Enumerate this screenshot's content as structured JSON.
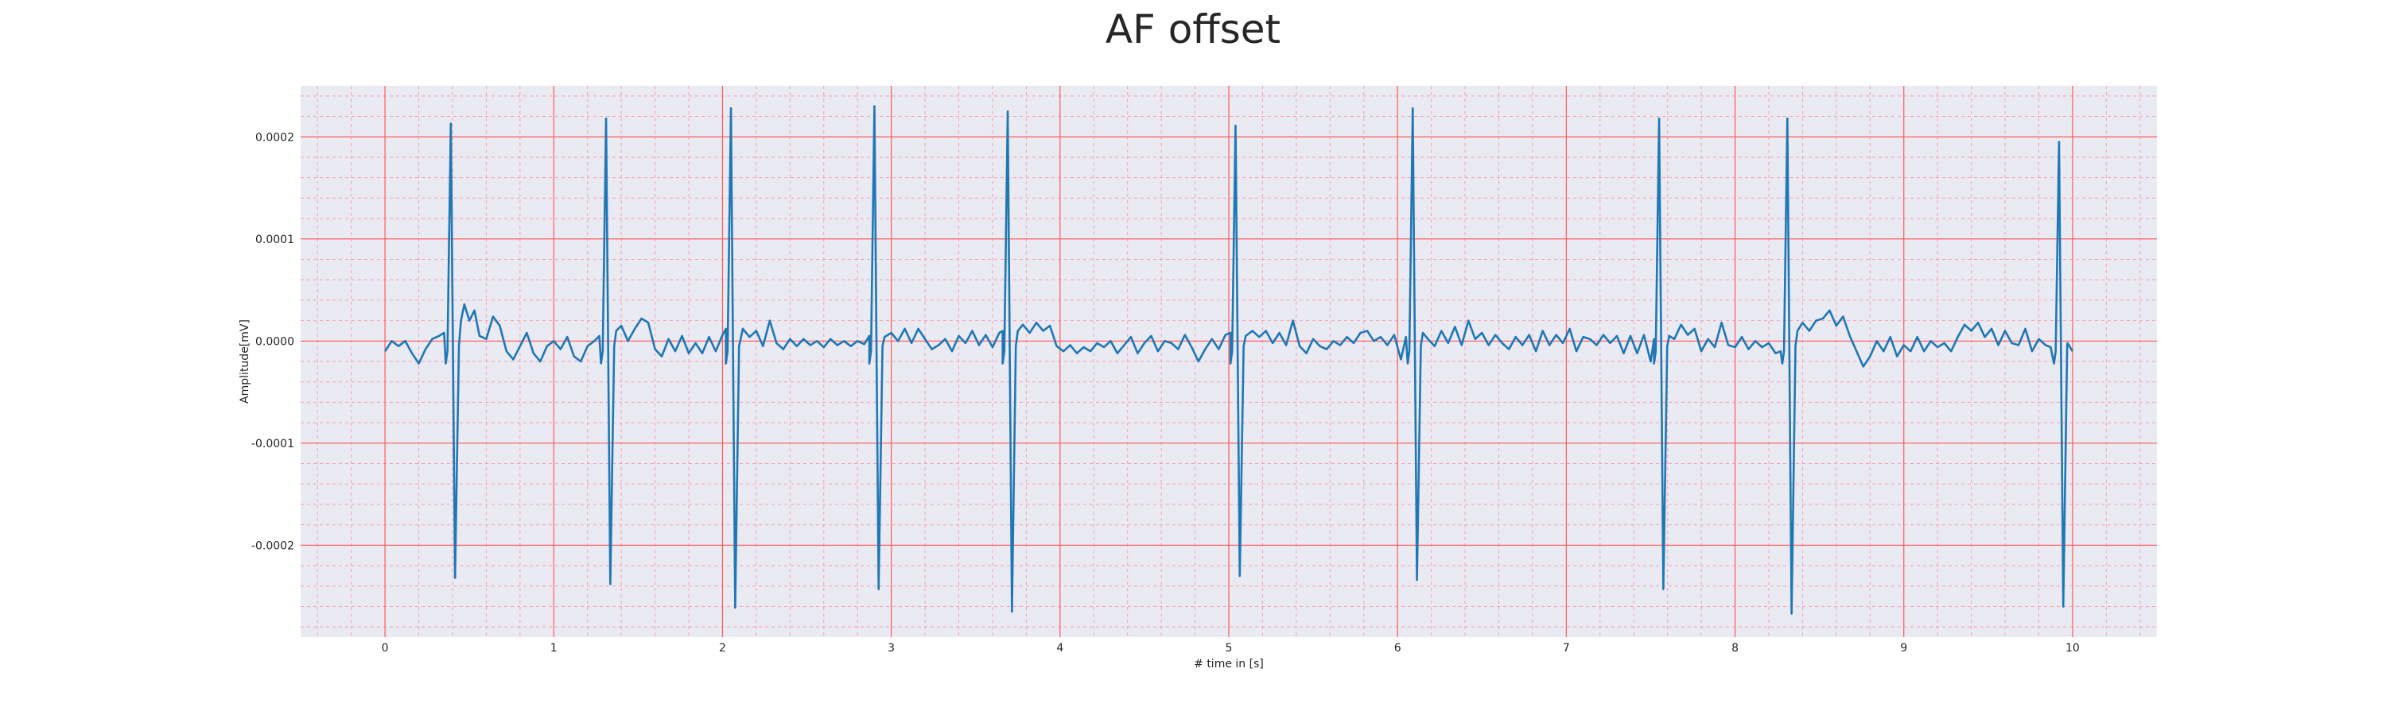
{
  "chart_data": {
    "type": "line",
    "title": "AF offset",
    "xlabel": "# time in [s]",
    "ylabel": "Amplitude[mV]",
    "xlim": [
      -0.5,
      10.5
    ],
    "ylim": [
      -0.00029,
      0.00025
    ],
    "xticks": [
      0,
      1,
      2,
      3,
      4,
      5,
      6,
      7,
      8,
      9,
      10
    ],
    "xtick_labels": [
      "0",
      "1",
      "2",
      "3",
      "4",
      "5",
      "6",
      "7",
      "8",
      "9",
      "10"
    ],
    "yticks": [
      0.0002,
      0.0001,
      0.0,
      -0.0001,
      -0.0002
    ],
    "ytick_labels": [
      "0.0002",
      "0.0001",
      "0.0000",
      "-0.0001",
      "-0.0002"
    ],
    "grid": {
      "major": true,
      "minor": true,
      "major_color": "#ff5a5a",
      "minor_color": "#f5a0b4"
    },
    "background": "#eaeaf2",
    "series": [
      {
        "name": "",
        "color": "#1f77b4",
        "beats": [
          {
            "t": 0.39,
            "peak": 0.000213,
            "trough": -0.000232
          },
          {
            "t": 1.31,
            "peak": 0.000218,
            "trough": -0.000238
          },
          {
            "t": 2.05,
            "peak": 0.000228,
            "trough": -0.000261
          },
          {
            "t": 2.9,
            "peak": 0.00023,
            "trough": -0.000243
          },
          {
            "t": 3.69,
            "peak": 0.000225,
            "trough": -0.000265
          },
          {
            "t": 5.04,
            "peak": 0.000211,
            "trough": -0.00023
          },
          {
            "t": 6.09,
            "peak": 0.000228,
            "trough": -0.000234
          },
          {
            "t": 7.55,
            "peak": 0.000218,
            "trough": -0.000243
          },
          {
            "t": 8.31,
            "peak": 0.000218,
            "trough": -0.000267
          },
          {
            "t": 9.92,
            "peak": 0.000195,
            "trough": -0.00026
          }
        ],
        "baseline": [
          [
            0.0,
            -1e-05
          ],
          [
            0.04,
            0.0
          ],
          [
            0.08,
            -5e-06
          ],
          [
            0.12,
            0.0
          ],
          [
            0.16,
            -1.2e-05
          ],
          [
            0.2,
            -2.2e-05
          ],
          [
            0.24,
            -8e-06
          ],
          [
            0.28,
            2e-06
          ],
          [
            0.32,
            5e-06
          ],
          [
            0.35,
            8e-06
          ],
          [
            0.45,
            2e-05
          ],
          [
            0.47,
            3.6e-05
          ],
          [
            0.5,
            2e-05
          ],
          [
            0.53,
            3e-05
          ],
          [
            0.56,
            5e-06
          ],
          [
            0.6,
            2e-06
          ],
          [
            0.64,
            2.4e-05
          ],
          [
            0.68,
            1.5e-05
          ],
          [
            0.72,
            -1e-05
          ],
          [
            0.76,
            -1.8e-05
          ],
          [
            0.8,
            -5e-06
          ],
          [
            0.84,
            8e-06
          ],
          [
            0.88,
            -1.2e-05
          ],
          [
            0.92,
            -2e-05
          ],
          [
            0.96,
            -5e-06
          ],
          [
            1.0,
            0.0
          ],
          [
            1.04,
            -8e-06
          ],
          [
            1.08,
            4e-06
          ],
          [
            1.12,
            -1.5e-05
          ],
          [
            1.16,
            -2e-05
          ],
          [
            1.2,
            -5e-06
          ],
          [
            1.24,
            0.0
          ],
          [
            1.27,
            5e-06
          ],
          [
            1.37,
            1e-05
          ],
          [
            1.4,
            1.5e-05
          ],
          [
            1.44,
            0.0
          ],
          [
            1.48,
            1.2e-05
          ],
          [
            1.52,
            2.2e-05
          ],
          [
            1.56,
            1.8e-05
          ],
          [
            1.6,
            -8e-06
          ],
          [
            1.64,
            -1.5e-05
          ],
          [
            1.68,
            2e-06
          ],
          [
            1.72,
            -1e-05
          ],
          [
            1.76,
            5e-06
          ],
          [
            1.8,
            -1.2e-05
          ],
          [
            1.84,
            -2e-06
          ],
          [
            1.88,
            -1.2e-05
          ],
          [
            1.92,
            4e-06
          ],
          [
            1.96,
            -1e-05
          ],
          [
            2.0,
            6e-06
          ],
          [
            2.02,
            1.2e-05
          ],
          [
            2.12,
            1.2e-05
          ],
          [
            2.16,
            4e-06
          ],
          [
            2.2,
            1e-05
          ],
          [
            2.24,
            -5e-06
          ],
          [
            2.28,
            2e-05
          ],
          [
            2.32,
            -2e-06
          ],
          [
            2.36,
            -8e-06
          ],
          [
            2.4,
            2e-06
          ],
          [
            2.44,
            -5e-06
          ],
          [
            2.48,
            2e-06
          ],
          [
            2.52,
            -4e-06
          ],
          [
            2.56,
            0.0
          ],
          [
            2.6,
            -6e-06
          ],
          [
            2.64,
            2e-06
          ],
          [
            2.68,
            -4e-06
          ],
          [
            2.72,
            0.0
          ],
          [
            2.76,
            -5e-06
          ],
          [
            2.8,
            0.0
          ],
          [
            2.84,
            -3e-06
          ],
          [
            2.87,
            5e-06
          ],
          [
            2.96,
            4e-06
          ],
          [
            3.0,
            8e-06
          ],
          [
            3.04,
            0.0
          ],
          [
            3.08,
            1.2e-05
          ],
          [
            3.12,
            -2e-06
          ],
          [
            3.16,
            1.2e-05
          ],
          [
            3.2,
            2e-06
          ],
          [
            3.24,
            -8e-06
          ],
          [
            3.28,
            -4e-06
          ],
          [
            3.32,
            2e-06
          ],
          [
            3.36,
            -1e-05
          ],
          [
            3.4,
            5e-06
          ],
          [
            3.44,
            -2e-06
          ],
          [
            3.48,
            1e-05
          ],
          [
            3.52,
            -4e-06
          ],
          [
            3.56,
            6e-06
          ],
          [
            3.6,
            -6e-06
          ],
          [
            3.64,
            8e-06
          ],
          [
            3.66,
            1e-05
          ],
          [
            3.75,
            1e-05
          ],
          [
            3.78,
            1.6e-05
          ],
          [
            3.82,
            8e-06
          ],
          [
            3.86,
            1.8e-05
          ],
          [
            3.9,
            1e-05
          ],
          [
            3.94,
            1.5e-05
          ],
          [
            3.98,
            -5e-06
          ],
          [
            4.02,
            -1e-05
          ],
          [
            4.06,
            -4e-06
          ],
          [
            4.1,
            -1.2e-05
          ],
          [
            4.14,
            -6e-06
          ],
          [
            4.18,
            -1e-05
          ],
          [
            4.22,
            -2e-06
          ],
          [
            4.26,
            -6e-06
          ],
          [
            4.3,
            0.0
          ],
          [
            4.34,
            -1.2e-05
          ],
          [
            4.38,
            -4e-06
          ],
          [
            4.42,
            4e-06
          ],
          [
            4.46,
            -1.2e-05
          ],
          [
            4.5,
            -2e-06
          ],
          [
            4.54,
            5e-06
          ],
          [
            4.58,
            -1e-05
          ],
          [
            4.62,
            0.0
          ],
          [
            4.66,
            -2e-06
          ],
          [
            4.7,
            -8e-06
          ],
          [
            4.74,
            6e-06
          ],
          [
            4.78,
            -6e-06
          ],
          [
            4.82,
            -2e-05
          ],
          [
            4.86,
            -8e-06
          ],
          [
            4.9,
            2e-06
          ],
          [
            4.94,
            -8e-06
          ],
          [
            4.98,
            6e-06
          ],
          [
            5.01,
            8e-06
          ],
          [
            5.1,
            5e-06
          ],
          [
            5.14,
            1e-05
          ],
          [
            5.18,
            4e-06
          ],
          [
            5.22,
            1e-05
          ],
          [
            5.26,
            -2e-06
          ],
          [
            5.3,
            8e-06
          ],
          [
            5.34,
            -4e-06
          ],
          [
            5.38,
            2e-05
          ],
          [
            5.42,
            -5e-06
          ],
          [
            5.46,
            -1.2e-05
          ],
          [
            5.5,
            2e-06
          ],
          [
            5.54,
            -5e-06
          ],
          [
            5.58,
            -8e-06
          ],
          [
            5.62,
            0.0
          ],
          [
            5.66,
            -4e-06
          ],
          [
            5.7,
            4e-06
          ],
          [
            5.74,
            -2e-06
          ],
          [
            5.78,
            8e-06
          ],
          [
            5.82,
            1e-05
          ],
          [
            5.86,
            0.0
          ],
          [
            5.9,
            4e-06
          ],
          [
            5.94,
            -4e-06
          ],
          [
            5.98,
            6e-06
          ],
          [
            6.02,
            -1.8e-05
          ],
          [
            6.05,
            4e-06
          ],
          [
            6.15,
            8e-06
          ],
          [
            6.18,
            2e-06
          ],
          [
            6.22,
            -5e-06
          ],
          [
            6.26,
            1e-05
          ],
          [
            6.3,
            -2e-06
          ],
          [
            6.34,
            1.4e-05
          ],
          [
            6.38,
            -4e-06
          ],
          [
            6.42,
            2e-05
          ],
          [
            6.46,
            2e-06
          ],
          [
            6.5,
            8e-06
          ],
          [
            6.54,
            -4e-06
          ],
          [
            6.58,
            6e-06
          ],
          [
            6.62,
            -2e-06
          ],
          [
            6.66,
            -8e-06
          ],
          [
            6.7,
            4e-06
          ],
          [
            6.74,
            -4e-06
          ],
          [
            6.78,
            6e-06
          ],
          [
            6.82,
            -1e-05
          ],
          [
            6.86,
            1e-05
          ],
          [
            6.9,
            -4e-06
          ],
          [
            6.94,
            6e-06
          ],
          [
            6.98,
            -2e-06
          ],
          [
            7.02,
            1.2e-05
          ],
          [
            7.06,
            -1e-05
          ],
          [
            7.1,
            4e-06
          ],
          [
            7.14,
            2e-06
          ],
          [
            7.18,
            -4e-06
          ],
          [
            7.22,
            6e-06
          ],
          [
            7.26,
            -2e-06
          ],
          [
            7.3,
            5e-06
          ],
          [
            7.34,
            -1.2e-05
          ],
          [
            7.38,
            5e-06
          ],
          [
            7.42,
            -1.2e-05
          ],
          [
            7.46,
            6e-06
          ],
          [
            7.5,
            -2e-05
          ],
          [
            7.52,
            2e-06
          ],
          [
            7.61,
            5e-06
          ],
          [
            7.64,
            2e-06
          ],
          [
            7.68,
            1.6e-05
          ],
          [
            7.72,
            6e-06
          ],
          [
            7.76,
            1.2e-05
          ],
          [
            7.8,
            -1e-05
          ],
          [
            7.84,
            2e-06
          ],
          [
            7.88,
            -6e-06
          ],
          [
            7.92,
            1.8e-05
          ],
          [
            7.96,
            -4e-06
          ],
          [
            8.0,
            -6e-06
          ],
          [
            8.04,
            4e-06
          ],
          [
            8.08,
            -8e-06
          ],
          [
            8.12,
            0.0
          ],
          [
            8.16,
            -6e-06
          ],
          [
            8.2,
            -2e-06
          ],
          [
            8.24,
            -1.2e-05
          ],
          [
            8.27,
            -1e-05
          ],
          [
            8.37,
            1e-05
          ],
          [
            8.4,
            1.8e-05
          ],
          [
            8.44,
            1e-05
          ],
          [
            8.48,
            2e-05
          ],
          [
            8.52,
            2.2e-05
          ],
          [
            8.56,
            3e-05
          ],
          [
            8.6,
            1.5e-05
          ],
          [
            8.64,
            2.4e-05
          ],
          [
            8.68,
            5e-06
          ],
          [
            8.72,
            -1e-05
          ],
          [
            8.76,
            -2.5e-05
          ],
          [
            8.8,
            -1.5e-05
          ],
          [
            8.84,
            0.0
          ],
          [
            8.88,
            -1e-05
          ],
          [
            8.92,
            4e-06
          ],
          [
            8.96,
            -1.5e-05
          ],
          [
            9.0,
            -4e-06
          ],
          [
            9.04,
            -1e-05
          ],
          [
            9.08,
            4e-06
          ],
          [
            9.12,
            -1e-05
          ],
          [
            9.16,
            0.0
          ],
          [
            9.2,
            -6e-06
          ],
          [
            9.24,
            -2e-06
          ],
          [
            9.28,
            -1e-05
          ],
          [
            9.32,
            4e-06
          ],
          [
            9.36,
            1.6e-05
          ],
          [
            9.4,
            1e-05
          ],
          [
            9.44,
            1.8e-05
          ],
          [
            9.48,
            4e-06
          ],
          [
            9.52,
            1.2e-05
          ],
          [
            9.56,
            -4e-06
          ],
          [
            9.6,
            1e-05
          ],
          [
            9.64,
            -2e-06
          ],
          [
            9.68,
            -4e-06
          ],
          [
            9.72,
            1.2e-05
          ],
          [
            9.76,
            -1e-05
          ],
          [
            9.8,
            2e-06
          ],
          [
            9.84,
            -4e-06
          ],
          [
            9.87,
            -6e-06
          ],
          [
            9.97,
            -2e-06
          ],
          [
            10.0,
            -1e-05
          ]
        ]
      }
    ]
  }
}
